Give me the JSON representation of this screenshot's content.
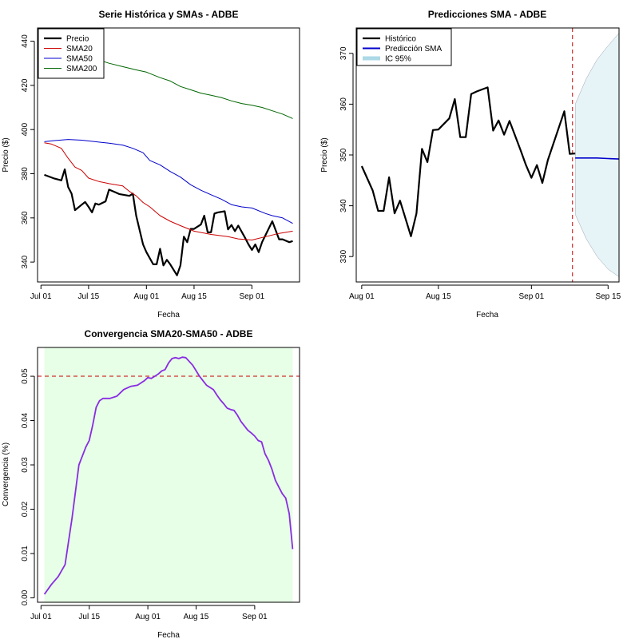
{
  "chart_data": [
    {
      "type": "line",
      "title": "Serie Histórica y SMAs - ADBE",
      "xlabel": "Fecha",
      "ylabel": "Precio ($)",
      "x_ticks": [
        {
          "day": 0,
          "label": "Jul 01"
        },
        {
          "day": 14,
          "label": "Jul 15"
        },
        {
          "day": 31,
          "label": "Aug 01"
        },
        {
          "day": 45,
          "label": "Aug 15"
        },
        {
          "day": 62,
          "label": "Sep 01"
        }
      ],
      "y_ticks": [
        340,
        360,
        380,
        400,
        420,
        440
      ],
      "xlim": [
        -1,
        76
      ],
      "ylim": [
        331,
        446
      ],
      "legend_position": "top-left",
      "series": [
        {
          "name": "Precio",
          "color": "#000000",
          "width": 2.2,
          "x": [
            1,
            4,
            6,
            7,
            8,
            9,
            10,
            12,
            13,
            14,
            15,
            16,
            17,
            19,
            20,
            22,
            23,
            26,
            27,
            28,
            30,
            31,
            33,
            34,
            35,
            36,
            37,
            38,
            40,
            41,
            42,
            43,
            44,
            45,
            47,
            48,
            49,
            50,
            51,
            52,
            54,
            55,
            56,
            57,
            58,
            60,
            61,
            62,
            63,
            64,
            65,
            68,
            70,
            71,
            73,
            74
          ],
          "y": [
            379.5,
            377.8,
            377.0,
            382.0,
            374.0,
            371.0,
            363.5,
            366.0,
            367.2,
            365.0,
            362.5,
            366.5,
            366.0,
            367.5,
            372.8,
            371.5,
            370.8,
            370.0,
            371.0,
            361.0,
            348.0,
            344.5,
            339.0,
            339.0,
            346.0,
            338.5,
            341.0,
            339.0,
            334.0,
            338.5,
            351.5,
            349.0,
            355.0,
            355.0,
            357.0,
            361.0,
            353.5,
            353.5,
            362.0,
            362.5,
            363.0,
            354.8,
            356.8,
            354.0,
            356.5,
            351.0,
            348.0,
            345.5,
            348.0,
            344.5,
            349.0,
            358.5,
            350.3,
            350.3,
            349.0,
            349.5
          ]
        },
        {
          "name": "SMA20",
          "color": "#cc0000",
          "width": 1,
          "x": [
            1,
            3,
            6,
            8,
            10,
            12,
            14,
            17,
            20,
            24,
            26,
            28,
            30,
            32,
            35,
            38,
            41,
            45,
            50,
            55,
            58,
            62,
            66,
            70,
            74
          ],
          "y": [
            394.0,
            393.5,
            391.5,
            387.0,
            383.0,
            381.5,
            378.0,
            376.5,
            375.5,
            374.5,
            372.0,
            370.0,
            367.0,
            365.0,
            361.0,
            358.5,
            356.5,
            354.0,
            352.5,
            351.5,
            350.5,
            350.0,
            351.5,
            353.0,
            354.0
          ]
        },
        {
          "name": "SMA50",
          "color": "#0000cc",
          "width": 1,
          "x": [
            1,
            4,
            8,
            12,
            16,
            20,
            24,
            27,
            30,
            32,
            35,
            38,
            41,
            44,
            47,
            50,
            53,
            56,
            59,
            62,
            66,
            68,
            71,
            74
          ],
          "y": [
            394.5,
            395.0,
            395.5,
            395.2,
            394.5,
            393.8,
            393.0,
            391.5,
            389.5,
            386.0,
            384.0,
            381.0,
            378.5,
            375.0,
            372.5,
            370.5,
            368.5,
            366.0,
            365.0,
            364.5,
            362.0,
            361.0,
            360.0,
            357.5
          ]
        },
        {
          "name": "SMA200",
          "color": "#006600",
          "width": 1,
          "x": [
            1,
            4,
            8,
            12,
            16,
            20,
            24,
            28,
            31,
            35,
            38,
            41,
            44,
            47,
            50,
            53,
            56,
            59,
            62,
            65,
            68,
            71,
            74
          ],
          "y": [
            437.0,
            436.5,
            434.5,
            433.0,
            432.0,
            430.0,
            428.5,
            427.0,
            426.0,
            423.5,
            422.0,
            419.5,
            418.0,
            416.5,
            415.5,
            414.5,
            413.0,
            411.8,
            411.0,
            410.0,
            408.5,
            407.0,
            405.0
          ]
        }
      ]
    },
    {
      "type": "line",
      "title": "Predicciones SMA - ADBE",
      "xlabel": "Fecha",
      "ylabel": "Precio ($)",
      "x_ticks": [
        {
          "day": 31,
          "label": "Aug 01"
        },
        {
          "day": 45,
          "label": "Aug 15"
        },
        {
          "day": 62,
          "label": "Sep 01"
        },
        {
          "day": 76,
          "label": "Sep 15"
        }
      ],
      "y_ticks": [
        330,
        340,
        350,
        360,
        370
      ],
      "xlim": [
        30,
        78
      ],
      "ylim": [
        325,
        375
      ],
      "vline_day": 69.5,
      "legend_position": "top-left",
      "series": [
        {
          "name": "Histórico",
          "color": "#000000",
          "width": 2.2,
          "x": [
            31,
            33,
            34,
            35,
            36,
            37,
            38,
            40,
            41,
            42,
            43,
            44,
            45,
            47,
            48,
            49,
            50,
            51,
            52,
            54,
            55,
            56,
            57,
            58,
            60,
            61,
            62,
            63,
            64,
            65,
            68,
            69,
            70
          ],
          "y": [
            347.8,
            343.0,
            339.0,
            339.0,
            345.6,
            338.5,
            341.0,
            334.0,
            338.5,
            351.2,
            348.6,
            354.9,
            355.0,
            357.2,
            361.0,
            353.5,
            353.5,
            362.0,
            362.5,
            363.3,
            354.8,
            356.8,
            354.0,
            356.7,
            351.0,
            348.0,
            345.5,
            348.0,
            344.5,
            349.0,
            358.6,
            350.2,
            350.3
          ]
        },
        {
          "name": "Predicción SMA",
          "color": "#0000cc",
          "width": 1.6,
          "x": [
            70,
            72,
            74,
            76,
            78
          ],
          "y": [
            349.4,
            349.4,
            349.4,
            349.3,
            349.2
          ]
        }
      ],
      "ci": {
        "name": "IC 95%",
        "color": "#add8e6",
        "x": [
          70,
          72,
          74,
          76,
          78
        ],
        "lower": [
          338.3,
          333.5,
          330.0,
          327.5,
          326.0
        ],
        "upper": [
          360.0,
          365.0,
          368.8,
          371.5,
          374.0
        ]
      }
    },
    {
      "type": "line",
      "title": "Convergencia SMA20-SMA50 - ADBE",
      "xlabel": "Fecha",
      "ylabel": "Convergencia (%)",
      "x_ticks": [
        {
          "day": 0,
          "label": "Jul 01"
        },
        {
          "day": 14,
          "label": "Jul 15"
        },
        {
          "day": 31,
          "label": "Aug 01"
        },
        {
          "day": 45,
          "label": "Aug 15"
        },
        {
          "day": 62,
          "label": "Sep 01"
        }
      ],
      "y_ticks": [
        "0.00",
        "0.01",
        "0.02",
        "0.03",
        "0.04",
        "0.05"
      ],
      "xlim": [
        -1,
        75
      ],
      "ylim": [
        -0.001,
        0.0565
      ],
      "threshold": 0.05,
      "band_color": "#e6ffe6",
      "series": [
        {
          "name": "",
          "color": "#8a2be2",
          "width": 1.8,
          "x": [
            1,
            3,
            5,
            7,
            9,
            11,
            12,
            13,
            14,
            15,
            16,
            17,
            18,
            20,
            22,
            24,
            26,
            28,
            29,
            30,
            31,
            32,
            33,
            34,
            35,
            36,
            37,
            38,
            39,
            40,
            41,
            42,
            44,
            46,
            48,
            50,
            51,
            52,
            53,
            54,
            55,
            56,
            57,
            58,
            60,
            61,
            62,
            63,
            64,
            65,
            66,
            67,
            68,
            69,
            70,
            71,
            72,
            73
          ],
          "y": [
            0.0008,
            0.003,
            0.0048,
            0.0075,
            0.018,
            0.03,
            0.032,
            0.034,
            0.0355,
            0.039,
            0.043,
            0.0445,
            0.045,
            0.045,
            0.0455,
            0.047,
            0.0477,
            0.048,
            0.0485,
            0.049,
            0.0497,
            0.0495,
            0.05,
            0.0505,
            0.0512,
            0.0515,
            0.053,
            0.054,
            0.0542,
            0.054,
            0.0543,
            0.0542,
            0.0525,
            0.05,
            0.048,
            0.047,
            0.0458,
            0.0447,
            0.0438,
            0.0428,
            0.0425,
            0.0423,
            0.0412,
            0.0398,
            0.0378,
            0.0372,
            0.0365,
            0.0355,
            0.0352,
            0.0325,
            0.031,
            0.029,
            0.0265,
            0.025,
            0.0235,
            0.0225,
            0.019,
            0.011
          ]
        }
      ]
    }
  ]
}
